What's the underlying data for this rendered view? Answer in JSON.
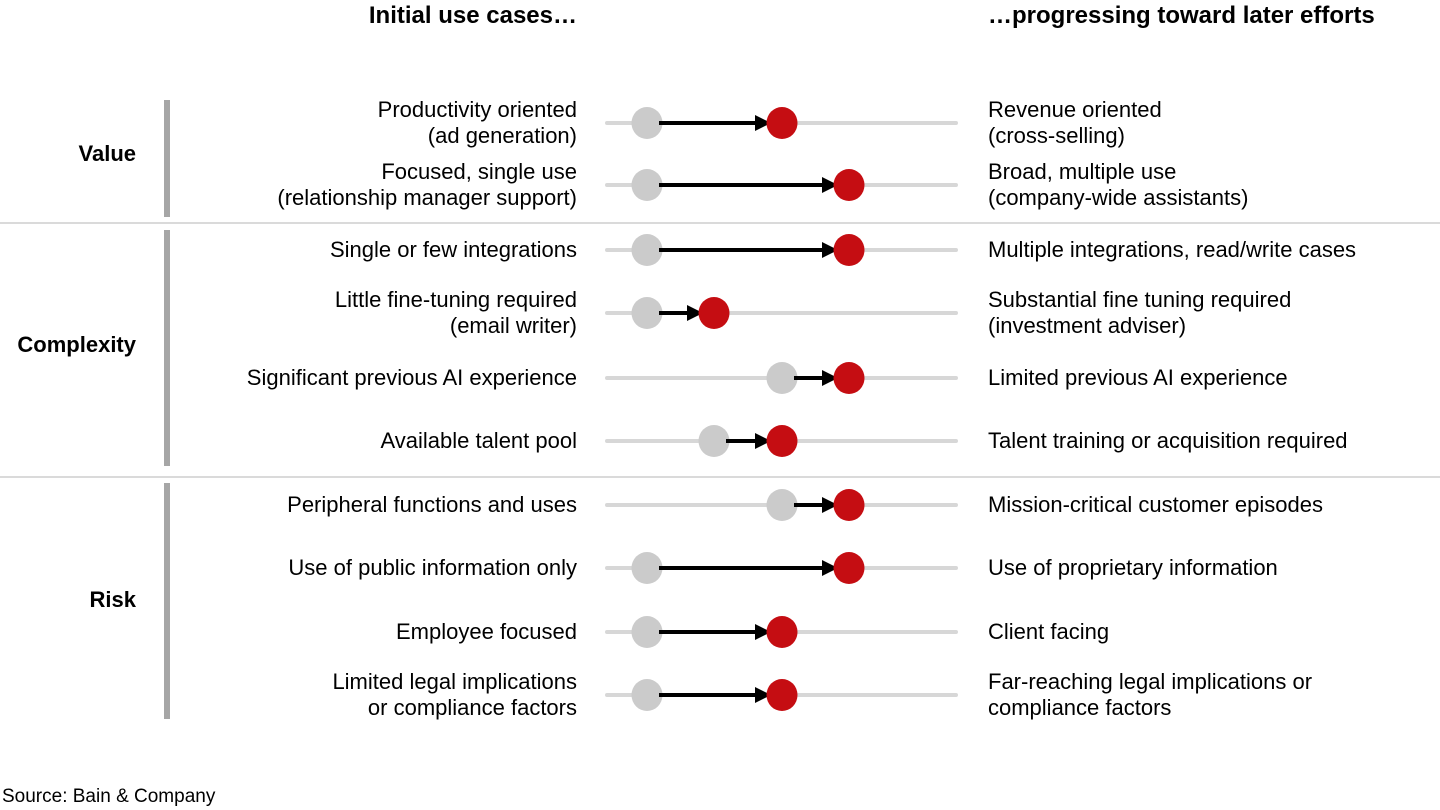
{
  "header": {
    "left": "Initial use cases…",
    "right": "…progressing toward later efforts"
  },
  "source": "Source: Bain & Company",
  "colors": {
    "accent_red": "#c50d12",
    "gray_dot": "#cbcbcb",
    "track": "#d7d7d7",
    "section_bar": "#a6a6a6",
    "divider": "#dadada",
    "arrow": "#000000",
    "text": "#000000",
    "background": "#ffffff"
  },
  "chart_data": {
    "type": "scatter",
    "variant": "dumbbell-arrow: gray start dot progressing via black arrow to red end dot along a horizontal track",
    "title_left": "Initial use cases…",
    "title_right": "…progressing toward later efforts",
    "x_meaning": "progression from initial use case (gray dot, left label) toward later effort (red dot, right label)",
    "xlim": [
      0,
      1
    ],
    "position_scale": "fraction of track length; stops observed at 0.12, 0.31, 0.50, 0.69",
    "grid": false,
    "legend": false,
    "groups": [
      "Value",
      "Complexity",
      "Risk"
    ],
    "rows": [
      {
        "group": "Value",
        "left": "Productivity oriented\n(ad generation)",
        "right": "Revenue oriented\n(cross-selling)",
        "start": 0.12,
        "end": 0.5
      },
      {
        "group": "Value",
        "left": "Focused, single use\n(relationship manager support)",
        "right": "Broad, multiple use\n(company-wide assistants)",
        "start": 0.12,
        "end": 0.69
      },
      {
        "group": "Complexity",
        "left": "Single or few integrations",
        "right": "Multiple integrations, read/write cases",
        "start": 0.12,
        "end": 0.69
      },
      {
        "group": "Complexity",
        "left": "Little fine-tuning required\n(email writer)",
        "right": "Substantial fine tuning required\n(investment adviser)",
        "start": 0.12,
        "end": 0.31
      },
      {
        "group": "Complexity",
        "left": "Significant previous AI experience",
        "right": "Limited previous AI experience",
        "start": 0.5,
        "end": 0.69
      },
      {
        "group": "Complexity",
        "left": "Available talent pool",
        "right": "Talent training or acquisition required",
        "start": 0.31,
        "end": 0.5
      },
      {
        "group": "Risk",
        "left": "Peripheral functions and uses",
        "right": "Mission-critical customer episodes",
        "start": 0.5,
        "end": 0.69
      },
      {
        "group": "Risk",
        "left": "Use of public information only",
        "right": "Use of proprietary information",
        "start": 0.12,
        "end": 0.69
      },
      {
        "group": "Risk",
        "left": "Employee focused",
        "right": "Client facing",
        "start": 0.12,
        "end": 0.5
      },
      {
        "group": "Risk",
        "left": "Limited legal implications\nor compliance factors",
        "right": "Far-reaching legal implications or\ncompliance factors",
        "start": 0.12,
        "end": 0.5
      }
    ]
  }
}
